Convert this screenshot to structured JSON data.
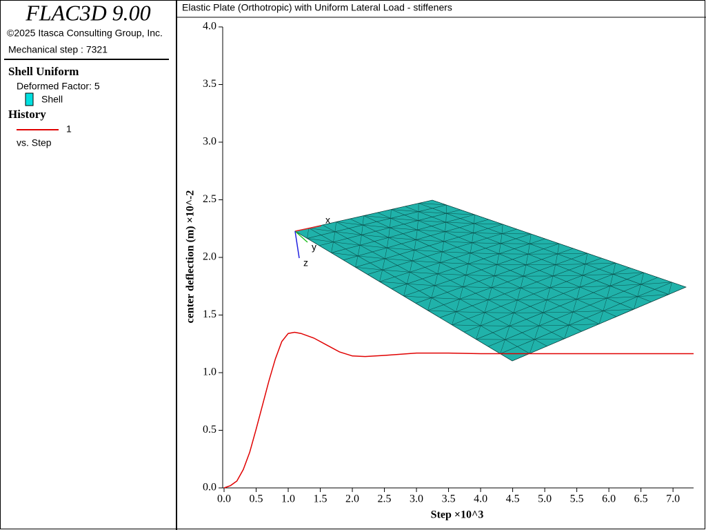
{
  "sidebar": {
    "app_title": "FLAC3D 9.00",
    "copyright": "©2025 Itasca Consulting Group, Inc.",
    "step_info": "Mechanical step : 7321",
    "section_shell": "Shell Uniform",
    "deformed_factor": "Deformed Factor: 5",
    "shell_legend": "Shell",
    "section_history": "History",
    "history_legend": "1",
    "history_vs": "vs. Step"
  },
  "plot_axes": [
    "x",
    "y",
    "z"
  ],
  "chart_data": {
    "type": "line",
    "title": "Elastic Plate (Orthotropic) with Uniform Lateral Load - stiffeners",
    "x_label": "Step ×10^3",
    "y_label": "center deflection (m) ×10^-2",
    "x": [
      0,
      0.1,
      0.2,
      0.3,
      0.4,
      0.5,
      0.6,
      0.7,
      0.8,
      0.9,
      1.0,
      1.1,
      1.2,
      1.4,
      1.6,
      1.8,
      2.0,
      2.2,
      2.5,
      3.0,
      3.5,
      4.0,
      5.0,
      6.0,
      7.321
    ],
    "series": [
      {
        "name": "1",
        "color": "#e00000",
        "values": [
          0,
          0.02,
          0.06,
          0.16,
          0.31,
          0.51,
          0.72,
          0.93,
          1.12,
          1.27,
          1.34,
          1.35,
          1.34,
          1.3,
          1.24,
          1.18,
          1.145,
          1.14,
          1.15,
          1.17,
          1.17,
          1.165,
          1.165,
          1.165,
          1.165
        ]
      }
    ],
    "xlim": [
      0,
      7.321
    ],
    "xticks": [
      {
        "value": 0,
        "label": "0.0"
      },
      0.5,
      {
        "value": 1,
        "label": "1.0"
      },
      1.5,
      {
        "value": 2,
        "label": "2.0"
      },
      2.5,
      {
        "value": 3,
        "label": "3.0"
      },
      3.5,
      {
        "value": 4,
        "label": "4.0"
      },
      4.5,
      {
        "value": 5,
        "label": "5.0"
      },
      5.5,
      {
        "value": 6,
        "label": "6.0"
      },
      6.5,
      {
        "value": 7,
        "label": "7.0"
      }
    ],
    "ylim": [
      0,
      4
    ],
    "yticks": [
      {
        "value": 0,
        "label": "0.0"
      },
      0.5,
      {
        "value": 1,
        "label": "1.0"
      },
      1.5,
      {
        "value": 2,
        "label": "2.0"
      },
      2.5,
      {
        "value": 3,
        "label": "3.0"
      },
      3.5,
      {
        "value": 4,
        "label": "4.0"
      }
    ],
    "grid": false
  }
}
